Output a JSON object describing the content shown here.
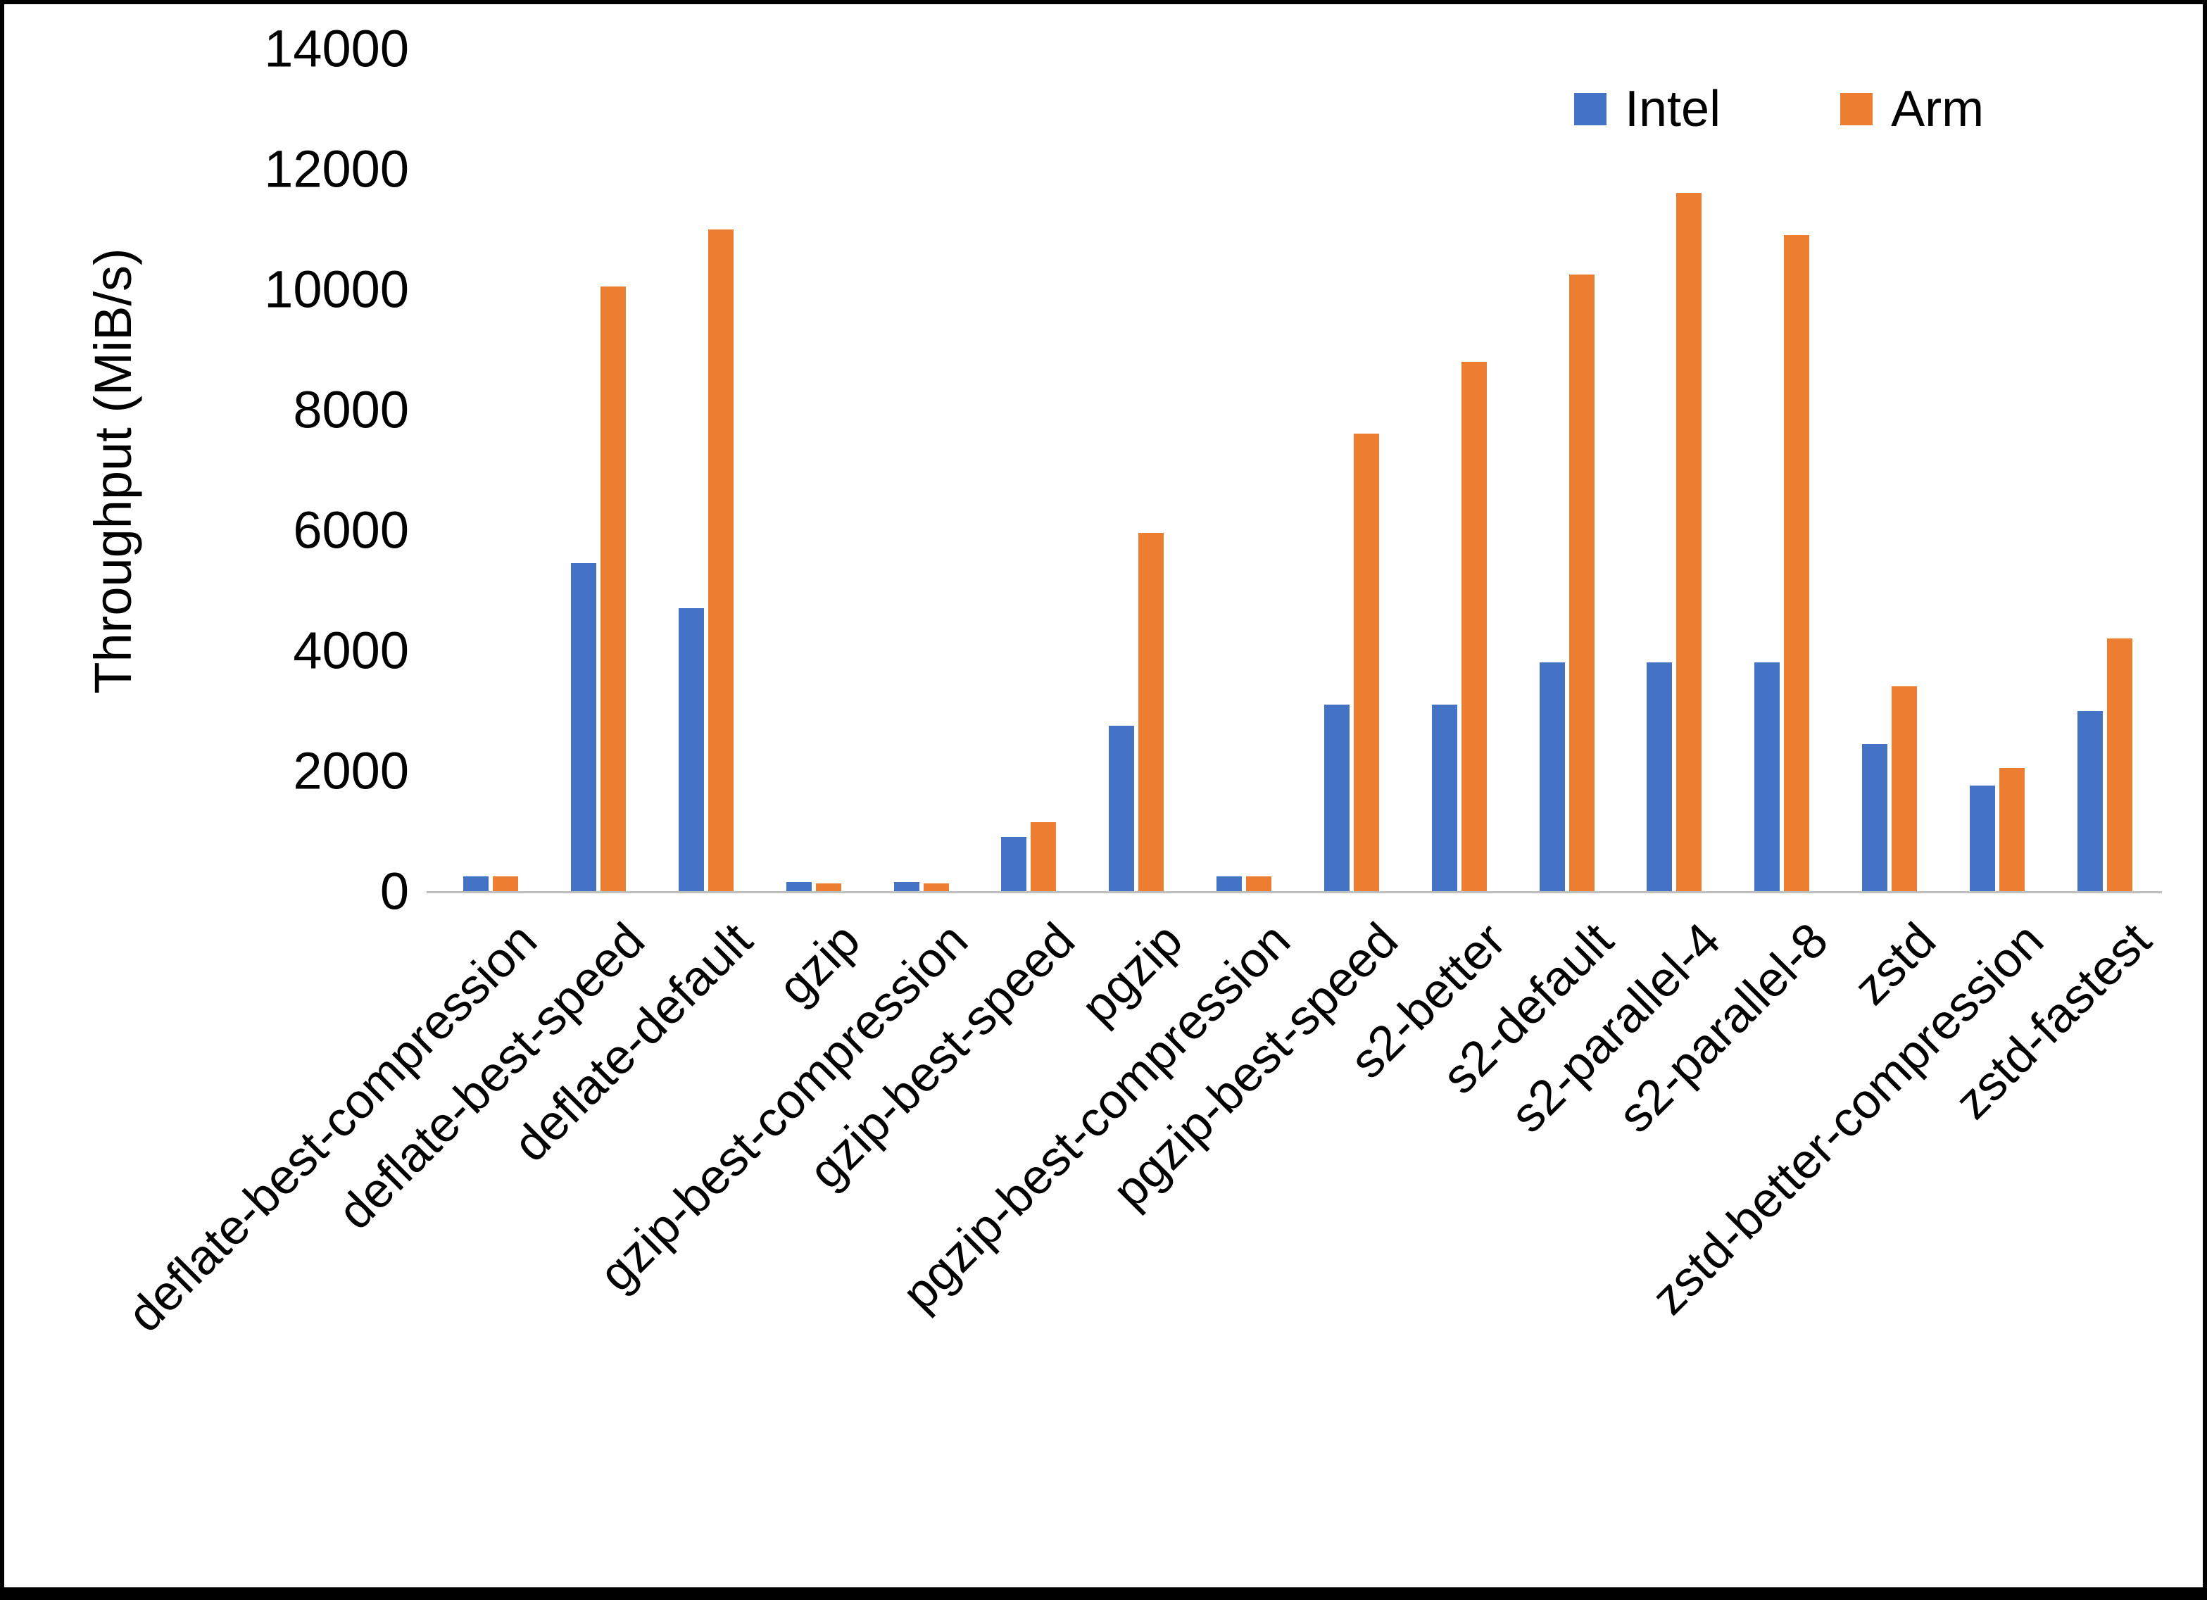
{
  "page": {
    "background": "#ffffff",
    "border_color": "#000000"
  },
  "chart_data": {
    "type": "bar",
    "title": "",
    "xlabel": "",
    "ylabel": "Throughput (MiB/s)",
    "ylim": [
      0,
      14000
    ],
    "yticks": [
      0,
      2000,
      4000,
      6000,
      8000,
      10000,
      12000,
      14000
    ],
    "grid": false,
    "legend_position": "top-right",
    "axis_line_color": "#bfbfbf",
    "categories": [
      "deflate-best-compression",
      "deflate-best-speed",
      "deflate-default",
      "gzip",
      "gzip-best-compression",
      "gzip-best-speed",
      "pgzip",
      "pgzip-best-compression",
      "pgzip-best-speed",
      "s2-better",
      "s2-default",
      "s2-parallel-4",
      "s2-parallel-8",
      "zstd",
      "zstd-better-compression",
      "zstd-fastest"
    ],
    "series": [
      {
        "name": "Intel",
        "color": "#4472C4",
        "values": [
          250,
          5450,
          4700,
          150,
          150,
          900,
          2750,
          250,
          3100,
          3100,
          3800,
          3800,
          3800,
          2450,
          1750,
          3000
        ]
      },
      {
        "name": "Arm",
        "color": "#ED7D31",
        "values": [
          250,
          10050,
          11000,
          130,
          130,
          1150,
          5950,
          250,
          7600,
          8800,
          10250,
          11600,
          10900,
          3400,
          2050,
          4200
        ]
      }
    ]
  }
}
